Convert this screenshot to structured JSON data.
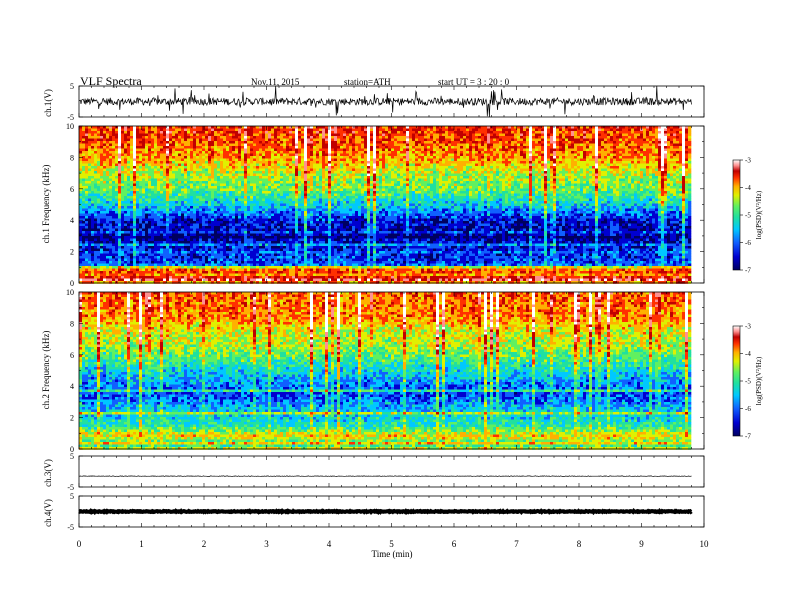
{
  "header": {
    "title": "VLF  Spectra",
    "date": "Nov.11, 2015",
    "station": "station=ATH",
    "start_ut": "start  UT  =   3  : 20 : 0"
  },
  "colors": {
    "spectrogram_scale": [
      "#000060",
      "#0000d0",
      "#1060ff",
      "#00c8ff",
      "#20e0a0",
      "#60f060",
      "#e0f000",
      "#ffb000",
      "#ff3000",
      "#c00000",
      "#ff9090",
      "#ffffff"
    ],
    "waveform": "#000000",
    "axes": "#000000"
  },
  "chart_data": {
    "type": "heatmap",
    "xlabel": "Time  (min)",
    "xlim": [
      0,
      10
    ],
    "x_ticks": [
      "0",
      "1",
      "2",
      "3",
      "4",
      "5",
      "6",
      "7",
      "8",
      "9",
      "10"
    ],
    "data_extent_min": 9.8,
    "panels": [
      {
        "id": "ch1_waveform",
        "type": "line",
        "ylabel": "ch.1(V)",
        "ylim": [
          -5,
          5
        ],
        "y_ticks": [
          "5",
          "-5"
        ],
        "mean_level": 0,
        "noise_amplitude": 1.2
      },
      {
        "id": "ch1_spectrogram",
        "type": "heatmap",
        "ylabel": "ch.1\nFrequency  (kHz)",
        "ylim": [
          0,
          10
        ],
        "y_ticks": [
          "0",
          "2",
          "4",
          "6",
          "8",
          "10"
        ],
        "colorbar": {
          "label": "log(PSD)(V²/Hz)",
          "range": [
            -7,
            -3
          ],
          "ticks": [
            "-3",
            "-4",
            "-5",
            "-6",
            "-7"
          ]
        },
        "profile": [
          {
            "f": 0.0,
            "v": -4.6
          },
          {
            "f": 0.2,
            "v": -3.5
          },
          {
            "f": 0.5,
            "v": -4.2
          },
          {
            "f": 0.8,
            "v": -4.0
          },
          {
            "f": 1.2,
            "v": -6.4
          },
          {
            "f": 2.0,
            "v": -6.5
          },
          {
            "f": 3.0,
            "v": -6.8
          },
          {
            "f": 4.0,
            "v": -6.6
          },
          {
            "f": 5.0,
            "v": -5.8
          },
          {
            "f": 6.0,
            "v": -5.2
          },
          {
            "f": 7.0,
            "v": -4.9
          },
          {
            "f": 8.0,
            "v": -4.4
          },
          {
            "f": 9.0,
            "v": -4.1
          },
          {
            "f": 10.0,
            "v": -4.0
          }
        ]
      },
      {
        "id": "ch2_spectrogram",
        "type": "heatmap",
        "ylabel": "ch.2\nFrequency  (kHz)",
        "ylim": [
          0,
          10
        ],
        "y_ticks": [
          "0",
          "2",
          "4",
          "6",
          "8",
          "10"
        ],
        "colorbar": {
          "label": "log(PSD)(V²/Hz)",
          "range": [
            -7,
            -3
          ],
          "ticks": [
            "-3",
            "-4",
            "-5",
            "-6",
            "-7"
          ]
        },
        "profile": [
          {
            "f": 0.0,
            "v": -4.8
          },
          {
            "f": 0.3,
            "v": -5.6
          },
          {
            "f": 0.8,
            "v": -4.6
          },
          {
            "f": 1.5,
            "v": -5.6
          },
          {
            "f": 2.5,
            "v": -5.9
          },
          {
            "f": 3.5,
            "v": -6.4
          },
          {
            "f": 4.5,
            "v": -6.0
          },
          {
            "f": 5.5,
            "v": -5.5
          },
          {
            "f": 6.5,
            "v": -5.0
          },
          {
            "f": 7.5,
            "v": -4.8
          },
          {
            "f": 8.5,
            "v": -4.3
          },
          {
            "f": 9.5,
            "v": -4.2
          },
          {
            "f": 10.0,
            "v": -4.1
          }
        ]
      },
      {
        "id": "ch3_waveform",
        "type": "line",
        "ylabel": "ch.3(V)",
        "ylim": [
          -5,
          5
        ],
        "y_ticks": [
          "5",
          "-5"
        ],
        "mean_level": -1.5,
        "noise_amplitude": 0.08
      },
      {
        "id": "ch4_waveform",
        "type": "line",
        "ylabel": "ch.4(V)",
        "ylim": [
          -5,
          5
        ],
        "y_ticks": [
          "5",
          "-5"
        ],
        "mean_level": 0,
        "noise_amplitude": 0.15
      }
    ]
  }
}
